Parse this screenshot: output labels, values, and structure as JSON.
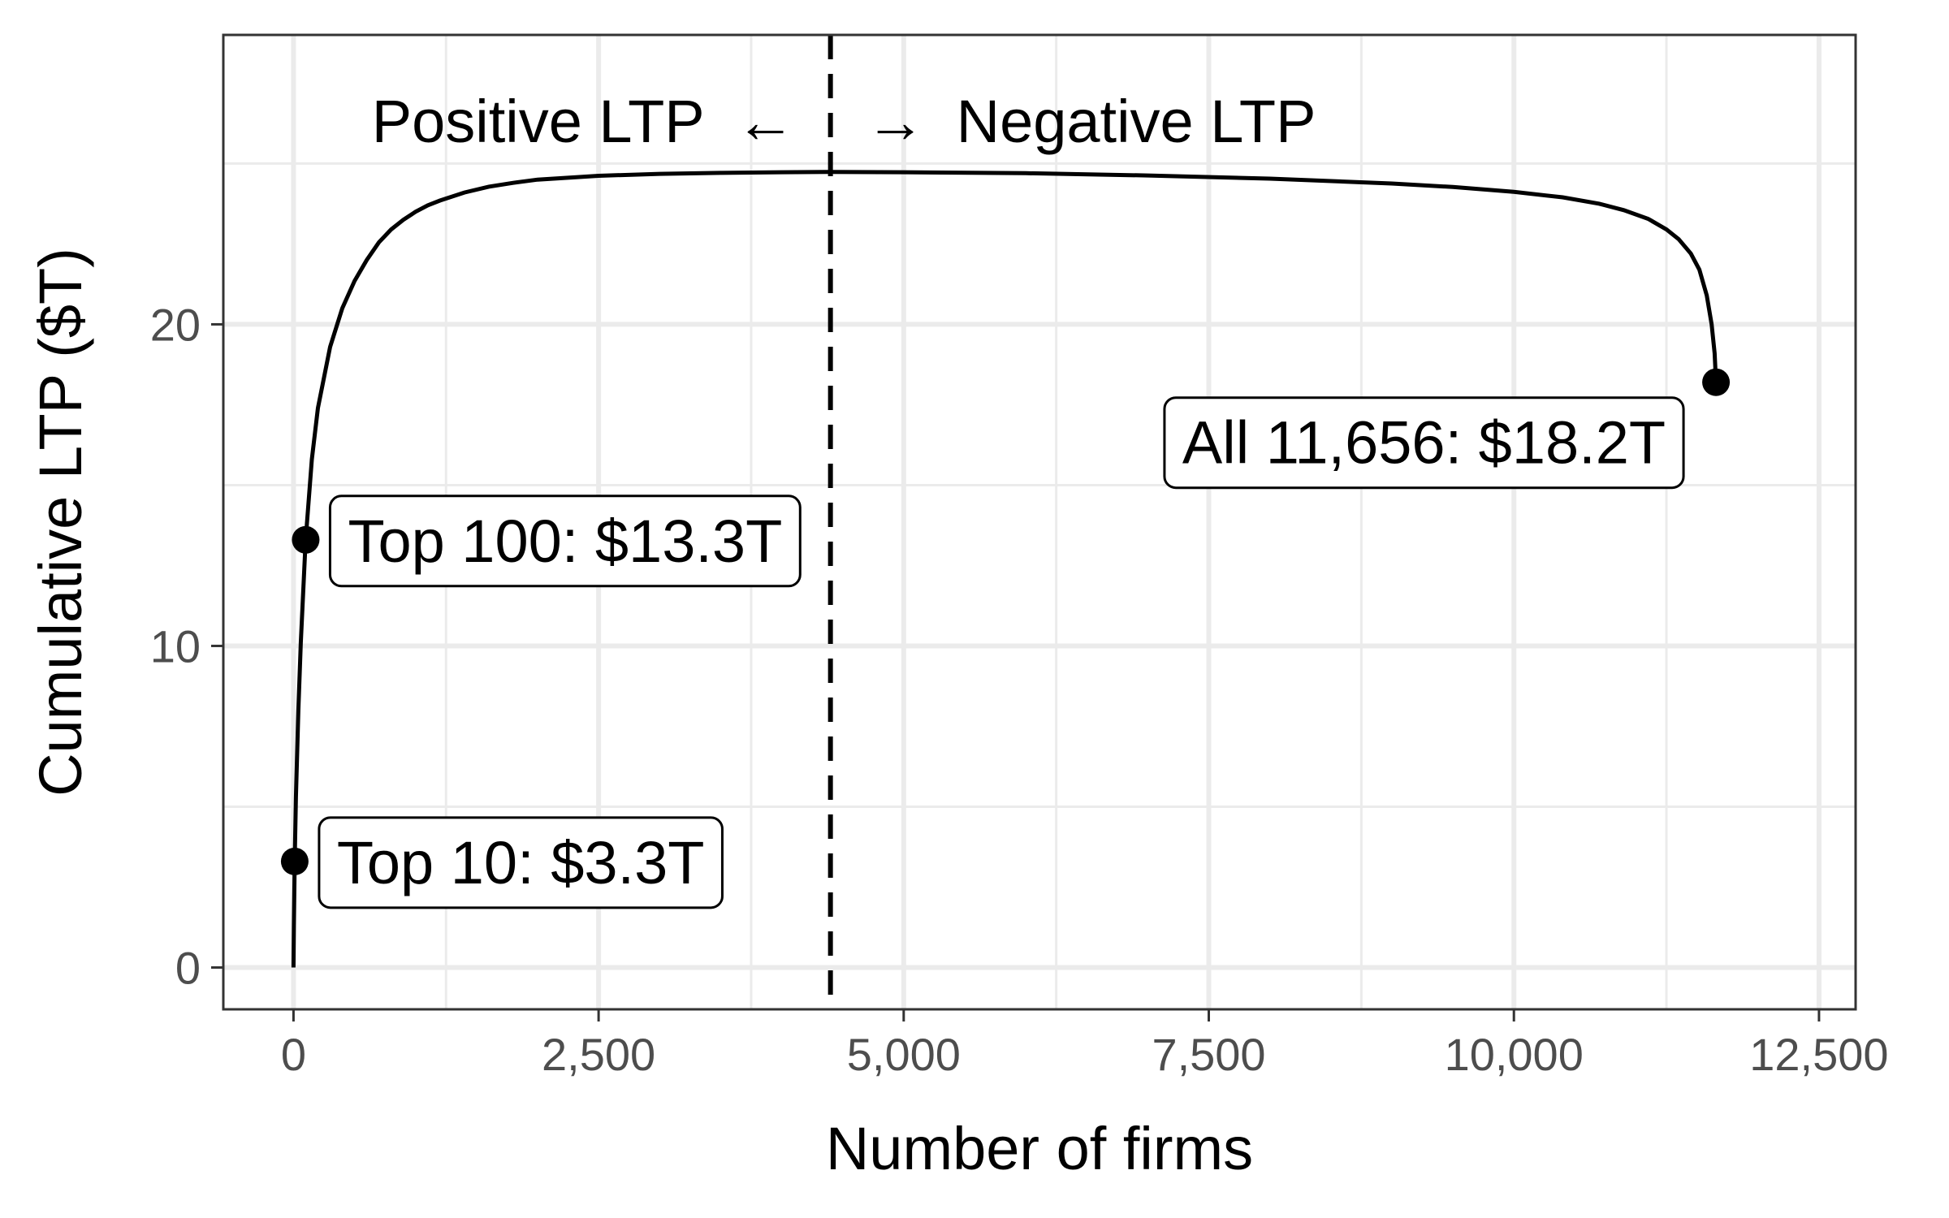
{
  "chart_data": {
    "type": "line",
    "title": "",
    "xlabel": "Number of firms",
    "ylabel": "Cumulative LTP ($T)",
    "xlim": [
      -575,
      12800
    ],
    "ylim": [
      -1.3,
      29
    ],
    "x_ticks": [
      0,
      2500,
      5000,
      7500,
      10000,
      12500
    ],
    "x_tick_labels": [
      "0",
      "2,500",
      "5,000",
      "7,500",
      "10,000",
      "12,500"
    ],
    "y_ticks": [
      0,
      10,
      20
    ],
    "y_tick_labels": [
      "0",
      "10",
      "20"
    ],
    "grid": true,
    "series": [
      {
        "x": [
          0,
          3,
          10,
          20,
          40,
          60,
          100,
          150,
          200,
          300,
          400,
          500,
          600,
          700,
          800,
          900,
          1000,
          1100,
          1200,
          1400,
          1600,
          1800,
          2000,
          2500,
          3000,
          3500,
          4000,
          4400,
          5000,
          6000,
          7000,
          8000,
          9000,
          9500,
          10000,
          10400,
          10700,
          10900,
          11100,
          11250,
          11350,
          11450,
          11520,
          11580,
          11620,
          11645,
          11656
        ],
        "y": [
          0,
          1.3,
          3.3,
          5.3,
          8.0,
          10.1,
          13.3,
          15.8,
          17.4,
          19.3,
          20.5,
          21.35,
          22.0,
          22.55,
          22.95,
          23.25,
          23.5,
          23.7,
          23.85,
          24.1,
          24.28,
          24.4,
          24.5,
          24.62,
          24.68,
          24.71,
          24.73,
          24.74,
          24.73,
          24.7,
          24.63,
          24.53,
          24.38,
          24.27,
          24.12,
          23.95,
          23.75,
          23.55,
          23.28,
          22.95,
          22.65,
          22.2,
          21.7,
          20.9,
          20.0,
          19.1,
          18.2
        ]
      }
    ],
    "highlight_points": [
      {
        "x": 10,
        "y": 3.3,
        "label": "Top 10: $3.3T"
      },
      {
        "x": 100,
        "y": 13.3,
        "label": "Top 100: $13.3T"
      },
      {
        "x": 11656,
        "y": 18.2,
        "label": "All 11,656: $18.2T"
      }
    ],
    "divider": {
      "x": 4400,
      "left_label": "Positive LTP",
      "arrow_left": "←",
      "arrow_right": "→",
      "right_label": "Negative LTP"
    }
  }
}
